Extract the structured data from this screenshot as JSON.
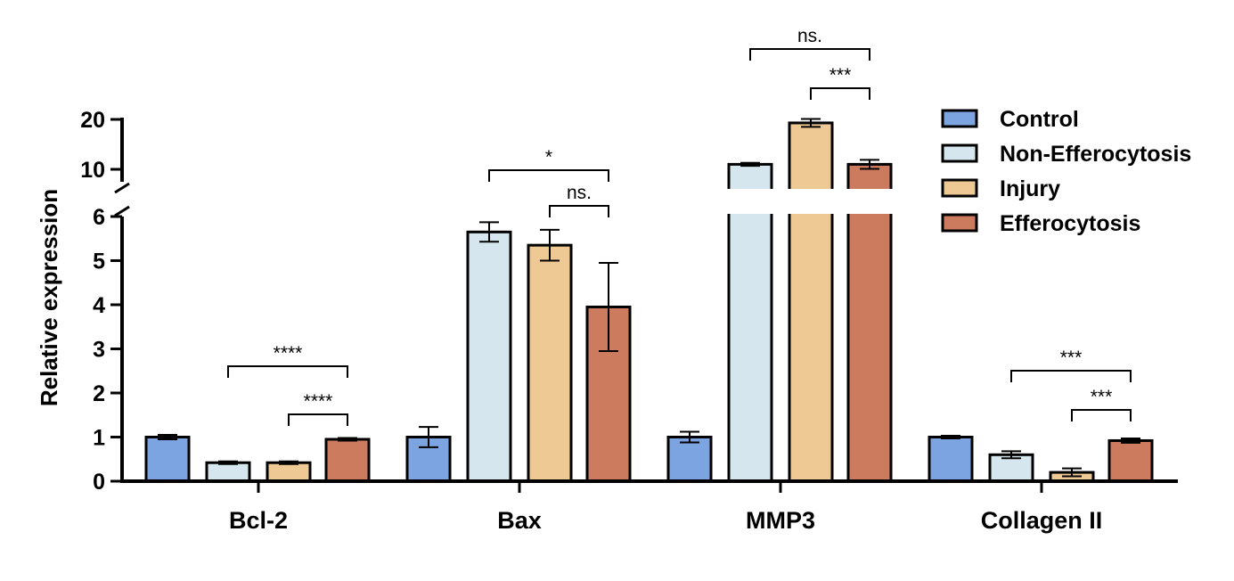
{
  "chart_data": {
    "type": "bar",
    "ylabel": "Relative expression",
    "categories": [
      "Bcl-2",
      "Bax",
      "MMP3",
      "Collagen II"
    ],
    "y_axis_break": {
      "lower_range": [
        0,
        6
      ],
      "upper_range": [
        10,
        20
      ]
    },
    "lower_ticks": [
      "0",
      "1",
      "2",
      "3",
      "4",
      "5",
      "6"
    ],
    "upper_ticks": [
      "10",
      "20"
    ],
    "legend_position": "top-right",
    "series": [
      {
        "name": "Control",
        "color": "#7ba4e0",
        "values": [
          1.0,
          1.0,
          1.0,
          1.0
        ],
        "errors": [
          0.05,
          0.23,
          0.12,
          0.03
        ]
      },
      {
        "name": "Non-Efferocytosis",
        "color": "#d5e6ee",
        "values": [
          0.42,
          5.65,
          11.0,
          0.6
        ],
        "errors": [
          0.03,
          0.22,
          0.3,
          0.08
        ]
      },
      {
        "name": "Injury",
        "color": "#efc993",
        "values": [
          0.42,
          5.35,
          19.3,
          0.2
        ],
        "errors": [
          0.03,
          0.35,
          0.8,
          0.09
        ]
      },
      {
        "name": "Efferocytosis",
        "color": "#cc7b5f",
        "values": [
          0.95,
          3.95,
          11.0,
          0.92
        ],
        "errors": [
          0.03,
          1.0,
          0.9,
          0.05
        ]
      }
    ],
    "significance": [
      {
        "category": 0,
        "from": 1,
        "to": 3,
        "label": "****"
      },
      {
        "category": 0,
        "from": 2,
        "to": 3,
        "label": "****"
      },
      {
        "category": 1,
        "from": 1,
        "to": 3,
        "label": "*"
      },
      {
        "category": 1,
        "from": 2,
        "to": 3,
        "label": "ns."
      },
      {
        "category": 2,
        "from": 1,
        "to": 3,
        "label": "ns."
      },
      {
        "category": 2,
        "from": 2,
        "to": 3,
        "label": "***"
      },
      {
        "category": 3,
        "from": 1,
        "to": 3,
        "label": "***"
      },
      {
        "category": 3,
        "from": 2,
        "to": 3,
        "label": "***"
      }
    ]
  }
}
